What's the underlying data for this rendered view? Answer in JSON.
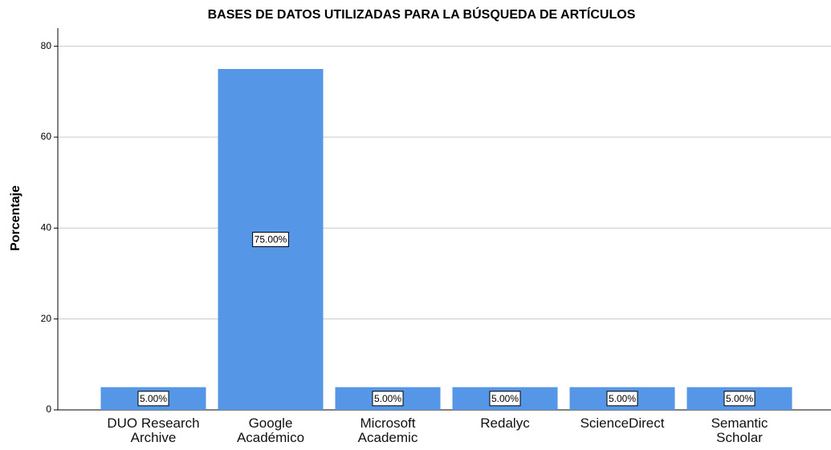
{
  "chart_data": {
    "type": "bar",
    "title": "BASES DE DATOS UTILIZADAS PARA LA BÚSQUEDA DE ARTÍCULOS",
    "y_label": "Porcentaje",
    "categories": [
      "DUO Research Archive",
      "Google Académico",
      "Microsoft Academic",
      "Redalyc",
      "ScienceDirect",
      "Semantic Scholar"
    ],
    "values": [
      5,
      75,
      5,
      5,
      5,
      5
    ],
    "value_labels": [
      "5.00%",
      "75.00%",
      "5.00%",
      "5.00%",
      "5.00%",
      "5.00%"
    ],
    "color": "#5596e6",
    "ylim": [
      0,
      84
    ],
    "yticks": [
      0,
      20,
      40,
      60,
      80
    ],
    "grid": true
  }
}
